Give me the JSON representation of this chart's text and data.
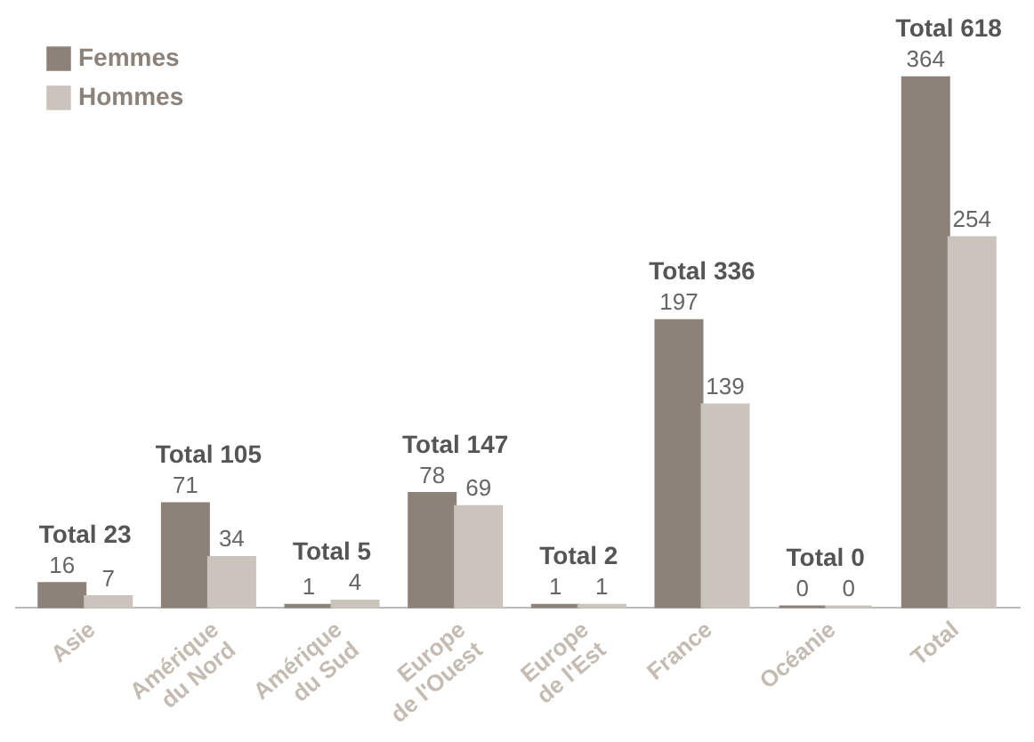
{
  "chart_data": {
    "type": "bar",
    "categories": [
      "Asie",
      "Amérique\ndu Nord",
      "Amérique\ndu Sud",
      "Europe\nde l'Ouest",
      "Europe\nde l'Est",
      "France",
      "Océanie",
      "Total"
    ],
    "series": [
      {
        "name": "Femmes",
        "color": "#8c8279",
        "values": [
          16,
          71,
          1,
          78,
          1,
          197,
          0,
          364
        ]
      },
      {
        "name": "Hommes",
        "color": "#cbc4bc",
        "values": [
          7,
          34,
          4,
          69,
          1,
          139,
          0,
          254
        ]
      }
    ],
    "totals": [
      "Total 23",
      "Total 105",
      "Total 5",
      "Total 147",
      "Total 2",
      "Total 336",
      "Total 0",
      "Total 618"
    ],
    "data_labels": true,
    "legend": "top left",
    "grid": false
  }
}
